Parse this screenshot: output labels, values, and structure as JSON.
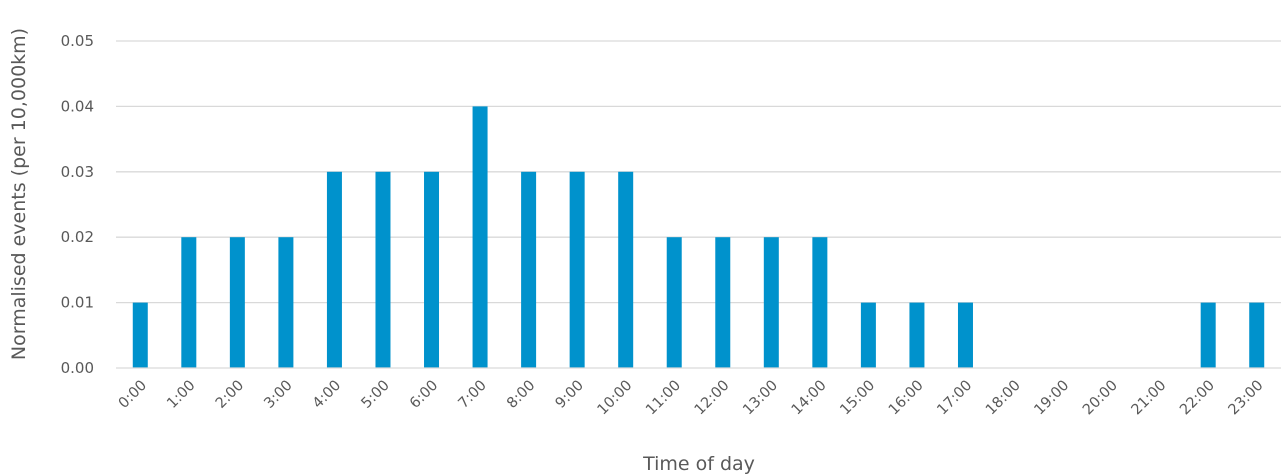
{
  "chart_data": {
    "type": "bar",
    "categories": [
      "0:00",
      "1:00",
      "2:00",
      "3:00",
      "4:00",
      "5:00",
      "6:00",
      "7:00",
      "8:00",
      "9:00",
      "10:00",
      "11:00",
      "12:00",
      "13:00",
      "14:00",
      "15:00",
      "16:00",
      "17:00",
      "18:00",
      "19:00",
      "20:00",
      "21:00",
      "22:00",
      "23:00"
    ],
    "values": [
      0.01,
      0.02,
      0.02,
      0.02,
      0.03,
      0.03,
      0.03,
      0.04,
      0.03,
      0.03,
      0.03,
      0.02,
      0.02,
      0.02,
      0.02,
      0.01,
      0.01,
      0.01,
      0,
      0,
      0,
      0,
      0.01,
      0.01
    ],
    "title": "",
    "xlabel": "Time of day",
    "ylabel": "Normalised events (per 10,000km)",
    "ylim": [
      0,
      0.05
    ],
    "yticks": [
      "0.00",
      "0.01",
      "0.02",
      "0.03",
      "0.04",
      "0.05"
    ],
    "grid": true,
    "legend": "none",
    "bar_color": "#0092CC",
    "grid_color": "#D9D9D9",
    "text_color": "#595959"
  }
}
